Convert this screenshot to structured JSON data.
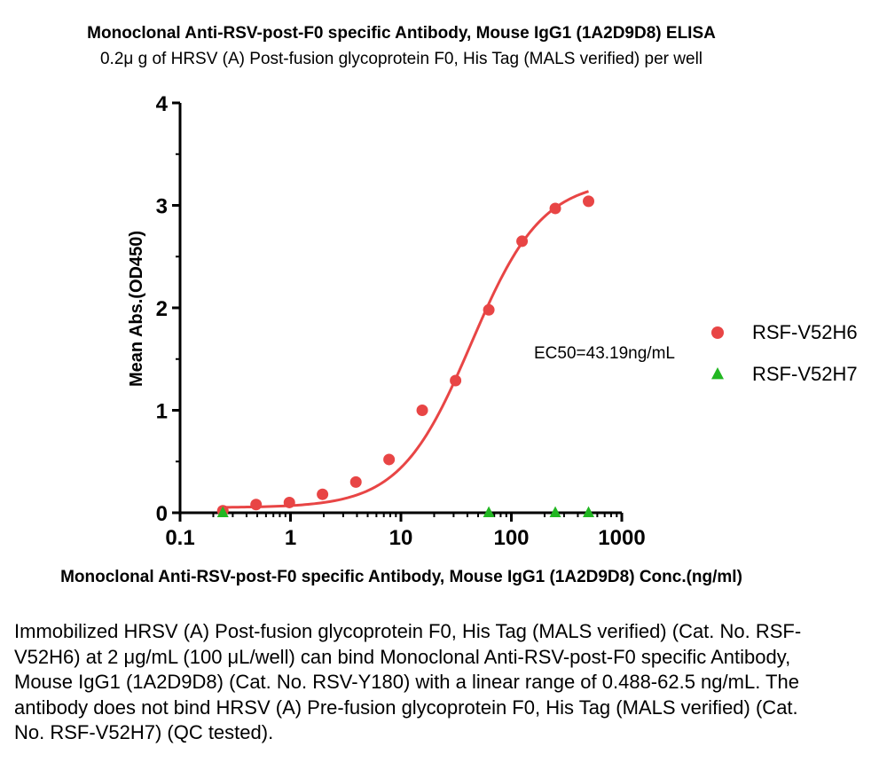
{
  "chart_data": {
    "type": "scatter",
    "title": "Monoclonal Anti-RSV-post-F0 specific Antibody, Mouse IgG1 (1A2D9D8) ELISA",
    "subtitle": "0.2μ g of HRSV (A) Post-fusion glycoprotein F0, His Tag (MALS verified) per well",
    "xlabel": "Monoclonal Anti-RSV-post-F0 specific Antibody, Mouse IgG1 (1A2D9D8) Conc.(ng/ml)",
    "ylabel": "Mean Abs.(OD450)",
    "xscale": "log",
    "xlim": [
      0.1,
      1000
    ],
    "ylim": [
      0,
      4
    ],
    "x_ticks": [
      "0.1",
      "1",
      "10",
      "100",
      "1000"
    ],
    "y_ticks": [
      "0",
      "1",
      "2",
      "3",
      "4"
    ],
    "grid": false,
    "legend_position": "right",
    "annotation": "EC50=43.19ng/mL",
    "series": [
      {
        "name": "RSF-V52H6",
        "marker": "circle",
        "color": "#e84545",
        "fit_curve": true,
        "x": [
          0.244,
          0.488,
          0.977,
          1.95,
          3.91,
          7.81,
          15.6,
          31.25,
          62.5,
          125,
          250,
          500
        ],
        "y": [
          0.02,
          0.08,
          0.1,
          0.18,
          0.3,
          0.52,
          1.0,
          1.29,
          1.98,
          2.65,
          2.97,
          3.04
        ]
      },
      {
        "name": "RSF-V52H7",
        "marker": "triangle",
        "color": "#22b722",
        "fit_curve": false,
        "x": [
          0.244,
          62.5,
          250,
          500
        ],
        "y": [
          0.0,
          0.0,
          0.0,
          0.0
        ]
      }
    ],
    "fit": {
      "bottom": 0.05,
      "top": 3.25,
      "ec50": 43.19,
      "hill": 1.35
    }
  },
  "caption": "Immobilized HRSV (A) Post-fusion glycoprotein F0, His Tag (MALS verified) (Cat. No. RSF-V52H6) at 2 μg/mL (100 μL/well) can bind Monoclonal Anti-RSV-post-F0 specific Antibody, Mouse IgG1 (1A2D9D8) (Cat. No. RSV-Y180) with a linear range of 0.488-62.5 ng/mL. The antibody does not bind HRSV (A) Pre-fusion glycoprotein F0, His Tag (MALS verified) (Cat. No. RSF-V52H7) (QC tested)."
}
